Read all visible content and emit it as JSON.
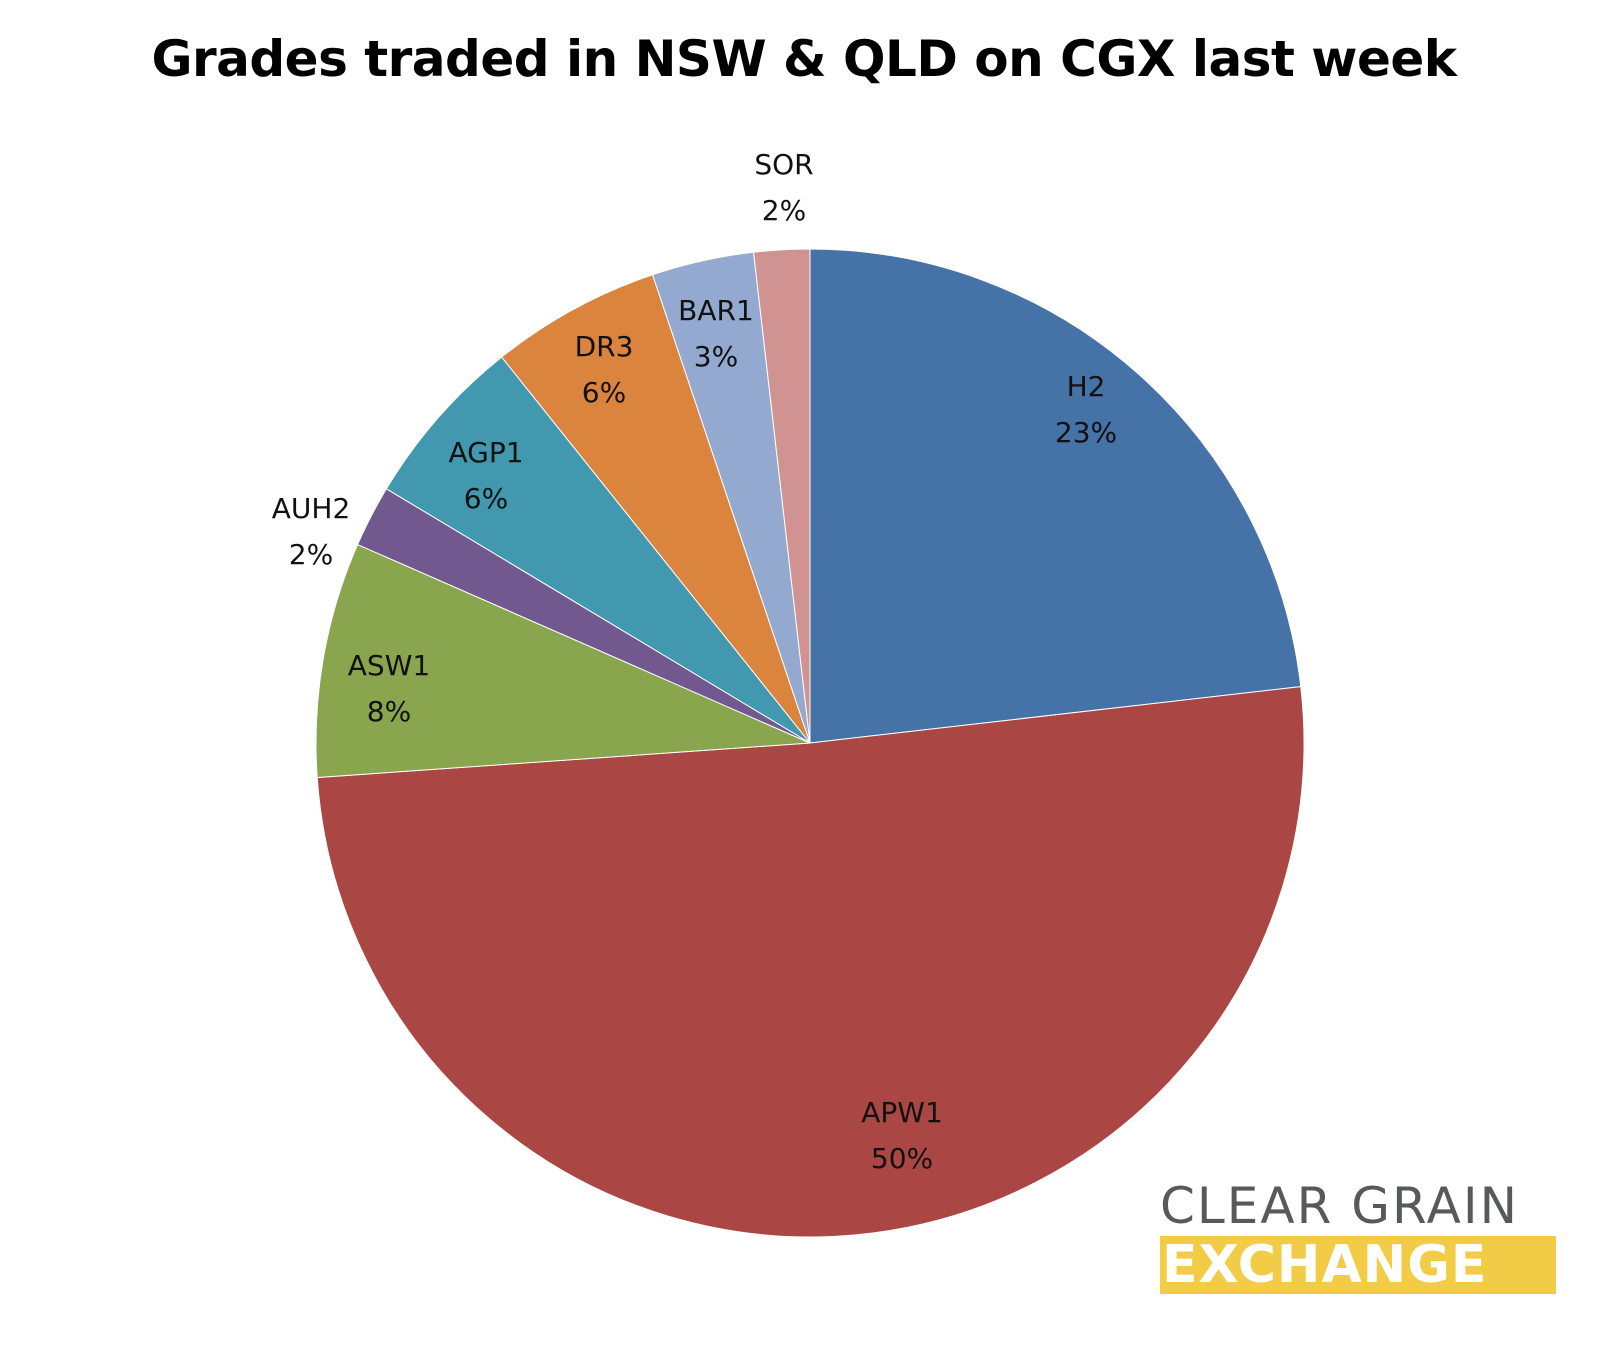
{
  "chart_data": {
    "type": "pie",
    "title": "Grades traded in NSW & QLD on CGX last week",
    "start_angle_deg": 0,
    "direction": "clockwise",
    "slices": [
      {
        "label": "H2",
        "value": 22.9,
        "display": "23%",
        "color": "#4572a7"
      },
      {
        "label": "APW1",
        "value": 50.1,
        "display": "50%",
        "color": "#aa4643"
      },
      {
        "label": "ASW1",
        "value": 7.6,
        "display": "8%",
        "color": "#89a54e"
      },
      {
        "label": "AUH2",
        "value": 2.0,
        "display": "2%",
        "color": "#71588f"
      },
      {
        "label": "AGP1",
        "value": 5.6,
        "display": "6%",
        "color": "#4198af"
      },
      {
        "label": "DR3",
        "value": 5.5,
        "display": "6%",
        "color": "#db843d"
      },
      {
        "label": "BAR1",
        "value": 3.3,
        "display": "3%",
        "color": "#93a9cf"
      },
      {
        "label": "SOR",
        "value": 1.8,
        "display": "2%",
        "color": "#d09392"
      }
    ]
  },
  "logo": {
    "line1": "CLEAR GRAIN",
    "line2": "EXCHANGE"
  }
}
